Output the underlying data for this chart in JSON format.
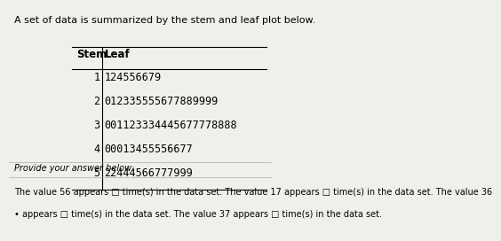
{
  "title": "A set of data is summarized by the stem and leaf plot below.",
  "stem_header": "Stem",
  "leaf_header": "Leaf",
  "stems": [
    "1",
    "2",
    "3",
    "4",
    "5"
  ],
  "leaves": [
    "124556679",
    "012335555677889999",
    "001123334445677778888",
    "00013455556677",
    "22444566777999"
  ],
  "provide_text": "Provide your answer below:",
  "bottom_text_line1": "The value 56 appears □ time(s) in the data set. The value 17 appears □ time(s) in the data set. The value 36",
  "bottom_text_line2": "• appears □ time(s) in the data set. The value 37 appears □ time(s) in the data set.",
  "bg_color": "#f0f0eb",
  "text_color": "#000000",
  "font_size_title": 8.0,
  "font_size_table": 8.5,
  "font_size_body": 7.0
}
